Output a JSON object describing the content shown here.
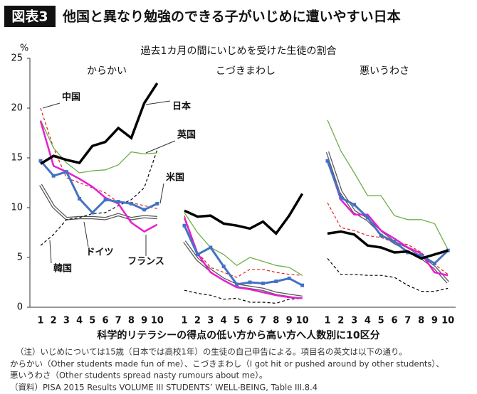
{
  "header": {
    "badge": "図表3",
    "title": "他国と異なり勉強のできる子がいじめに遭いやすい日本"
  },
  "subtitle": "過去1カ月の間にいじめを受けた生徒の割合",
  "y_unit": "%",
  "x_label": "科学的リテラシーの得点の低い方から高い方へ人数別に10区分",
  "notes": [
    "（注）いじめについては15歳（日本では高校1年）の生徒の自己申告による。項目名の英文は以下の通り。",
    "からかい（Other students made fun of me）、こづきまわし（I got hit or pushed around by other students）、",
    "悪いうわさ（Other students spread nasty rumours about me）。",
    "（資料）PISA 2015 Results VOLUME III STUDENTS’ WELL-BEING, Table III.8.4"
  ],
  "chart_data": [
    {
      "type": "line",
      "title": "からかい",
      "categories": [
        "1",
        "2",
        "3",
        "4",
        "5",
        "6",
        "7",
        "8",
        "9",
        "10"
      ],
      "ylim": [
        0,
        25
      ],
      "yticks": [
        0,
        5,
        10,
        15,
        20,
        25
      ],
      "series": [
        {
          "name": "ドイツ",
          "color": "#555555",
          "double": true,
          "values": [
            12.3,
            10.1,
            8.9,
            9.0,
            9.0,
            8.9,
            9.3,
            8.9,
            9.1,
            9.0
          ]
        },
        {
          "name": "韓国",
          "color": "#000000",
          "dash": true,
          "width": 1.2,
          "values": [
            6.2,
            7.3,
            8.8,
            9.0,
            9.4,
            9.5,
            10.2,
            10.8,
            12.0,
            15.8
          ]
        },
        {
          "name": "中国",
          "color": "#e0201b",
          "dash": true,
          "width": 1.2,
          "values": [
            20.0,
            16.0,
            13.0,
            12.5,
            12.0,
            11.5,
            10.5,
            10.5,
            10.2,
            9.9
          ]
        },
        {
          "name": "英国",
          "color": "#70ad47",
          "width": 1.3,
          "values": [
            18.8,
            16.0,
            14.5,
            13.5,
            13.7,
            13.8,
            14.3,
            15.6,
            15.4,
            15.5
          ]
        },
        {
          "name": "フランス",
          "color": "#e61ed2",
          "width": 2.5,
          "values": [
            18.7,
            14.2,
            13.6,
            12.9,
            12.1,
            11.0,
            10.4,
            8.5,
            7.6,
            8.3
          ]
        },
        {
          "name": "米国",
          "color": "#4472c4",
          "width": 3,
          "markers": true,
          "values": [
            14.7,
            13.2,
            13.6,
            10.9,
            9.5,
            10.8,
            10.6,
            10.4,
            9.8,
            10.4
          ]
        },
        {
          "name": "日本",
          "color": "#000000",
          "width": 3.5,
          "values": [
            14.4,
            15.2,
            14.8,
            14.5,
            16.2,
            16.6,
            18.0,
            17.0,
            20.5,
            22.5
          ]
        }
      ]
    },
    {
      "type": "line",
      "title": "こづきまわし",
      "categories": [
        "1",
        "2",
        "3",
        "4",
        "5",
        "6",
        "7",
        "8",
        "9",
        "10"
      ],
      "series": [
        {
          "color": "#555555",
          "double": true,
          "values": [
            6.6,
            4.8,
            3.7,
            2.8,
            2.2,
            2.0,
            1.8,
            1.4,
            1.2,
            1.0
          ]
        },
        {
          "color": "#000000",
          "dash": true,
          "width": 1.2,
          "values": [
            1.7,
            1.4,
            1.2,
            0.8,
            0.9,
            0.5,
            0.5,
            0.4,
            0.8,
            0.9
          ]
        },
        {
          "color": "#e0201b",
          "dash": true,
          "width": 1.2,
          "values": [
            9.2,
            5.5,
            4.0,
            3.5,
            3.0,
            3.8,
            3.8,
            3.5,
            3.3,
            3.2
          ]
        },
        {
          "color": "#70ad47",
          "width": 1.3,
          "values": [
            9.5,
            7.5,
            6.0,
            5.3,
            4.2,
            5.0,
            4.6,
            4.2,
            4.0,
            3.2
          ]
        },
        {
          "color": "#e61ed2",
          "width": 2.5,
          "values": [
            9.0,
            5.4,
            3.5,
            2.7,
            2.0,
            1.8,
            1.5,
            1.2,
            1.0,
            0.9
          ]
        },
        {
          "color": "#4472c4",
          "width": 3,
          "markers": true,
          "values": [
            8.2,
            5.3,
            6.0,
            4.1,
            2.3,
            2.5,
            2.4,
            2.6,
            2.9,
            2.2
          ]
        },
        {
          "color": "#000000",
          "width": 3.5,
          "values": [
            9.7,
            9.1,
            9.2,
            8.4,
            8.2,
            7.9,
            8.6,
            7.4,
            9.2,
            11.4
          ]
        }
      ]
    },
    {
      "type": "line",
      "title": "悪いうわさ",
      "categories": [
        "1",
        "2",
        "3",
        "4",
        "5",
        "6",
        "7",
        "8",
        "9",
        "10"
      ],
      "series": [
        {
          "color": "#555555",
          "double": true,
          "values": [
            15.6,
            11.6,
            9.6,
            8.8,
            7.5,
            6.5,
            5.8,
            5.0,
            4.0,
            2.5
          ]
        },
        {
          "color": "#000000",
          "dash": true,
          "width": 1.2,
          "values": [
            4.9,
            3.3,
            3.3,
            3.2,
            3.2,
            3.0,
            2.2,
            1.6,
            1.6,
            1.9
          ]
        },
        {
          "color": "#e0201b",
          "dash": true,
          "width": 1.2,
          "values": [
            10.5,
            8.0,
            7.7,
            7.2,
            7.0,
            6.5,
            6.3,
            5.5,
            4.3,
            3.3
          ]
        },
        {
          "color": "#70ad47",
          "width": 1.3,
          "values": [
            18.8,
            15.7,
            13.5,
            11.2,
            11.2,
            9.2,
            8.8,
            8.8,
            8.4,
            5.8
          ]
        },
        {
          "color": "#e61ed2",
          "width": 2.5,
          "values": [
            14.8,
            10.8,
            9.3,
            9.3,
            7.7,
            6.9,
            6.0,
            5.4,
            3.5,
            3.2
          ]
        },
        {
          "color": "#4472c4",
          "width": 3,
          "markers": true,
          "values": [
            14.7,
            11.0,
            10.3,
            9.0,
            7.2,
            6.6,
            5.5,
            5.2,
            4.4,
            5.7
          ]
        },
        {
          "color": "#000000",
          "width": 3.5,
          "values": [
            7.4,
            7.6,
            7.3,
            6.2,
            6.0,
            5.5,
            5.6,
            4.9,
            5.3,
            5.7
          ]
        }
      ]
    }
  ]
}
